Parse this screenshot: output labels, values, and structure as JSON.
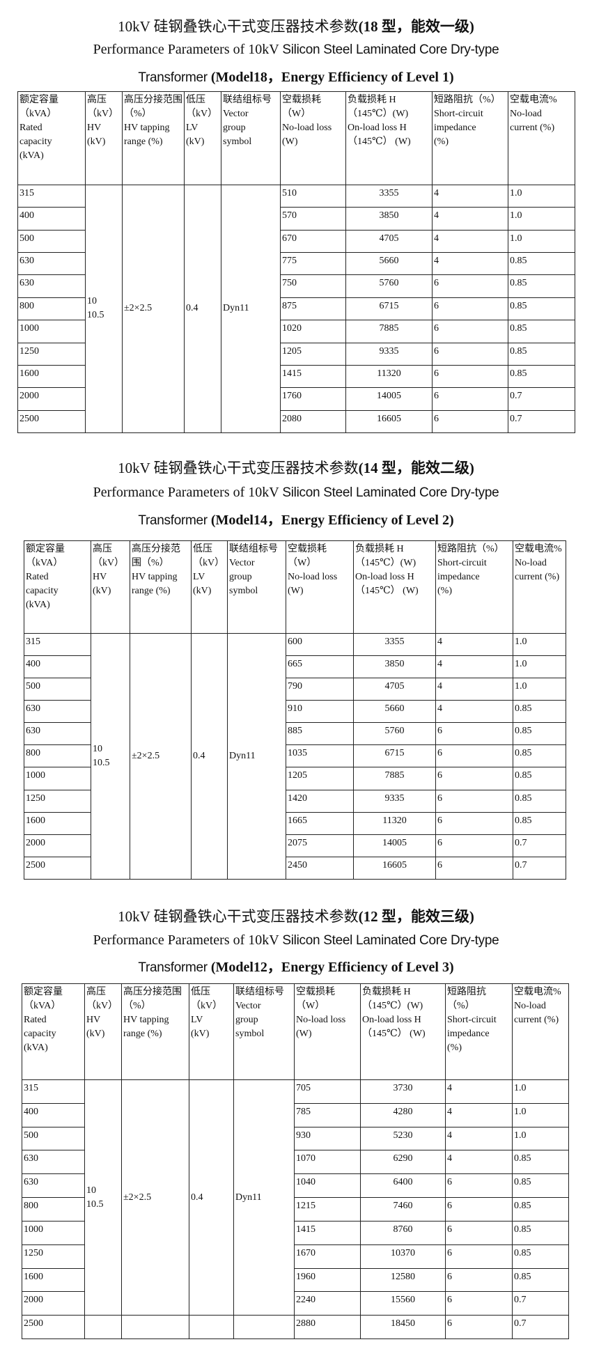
{
  "headers": [
    "额定容量\n（kVA）\n Rated\ncapacity\n(kVA)",
    "高压\n（kV）\nHV\n  (kV)",
    "高压分接范围（%）\nHV tapping\nrange (%)",
    "低压\n（kV）\nLV\n  (kV)",
    "联结组标号\nVector\ngroup\nsymbol",
    "空载损耗\n（W）\nNo-load loss\n(W)",
    "负载损耗 H\n（145℃）(W)\nOn-load loss  H\n（145℃） (W)",
    "短路阻抗（%）\nShort-circuit\nimpedance\n(%)",
    "空载电流%\nNo-load\ncurrent (%)"
  ],
  "common": {
    "hv": "10\n10.5",
    "tapping": "±2×2.5",
    "lv": "0.4",
    "vector": "Dyn11"
  },
  "tables": [
    {
      "title_cn_a": "10kV 硅钢叠铁心干式变压器技术参数",
      "title_cn_b": "(18 型，能效一级)",
      "title_en_1a": "Performance Parameters of 10kV ",
      "title_en_1b": "Silicon Steel Laminated Core Dry-type",
      "title_en_2a": "Transformer ",
      "title_en_2b": "(Model18，Energy Efficiency of Level 1)",
      "rows": [
        [
          "315",
          "510",
          "3355",
          "4",
          "1.0"
        ],
        [
          "400",
          "570",
          "3850",
          "4",
          "1.0"
        ],
        [
          "500",
          "670",
          "4705",
          "4",
          "1.0"
        ],
        [
          "630",
          "775",
          "5660",
          "4",
          "0.85"
        ],
        [
          "630",
          "750",
          "5760",
          "6",
          "0.85"
        ],
        [
          "800",
          "875",
          "6715",
          "6",
          "0.85"
        ],
        [
          "1000",
          "1020",
          "7885",
          "6",
          "0.85"
        ],
        [
          "1250",
          "1205",
          "9335",
          "6",
          "0.85"
        ],
        [
          "1600",
          "1415",
          "11320",
          "6",
          "0.85"
        ],
        [
          "2000",
          "1760",
          "14005",
          "6",
          "0.7"
        ],
        [
          "2500",
          "2080",
          "16605",
          "6",
          "0.7"
        ]
      ]
    },
    {
      "title_cn_a": "10kV 硅钢叠铁心干式变压器技术参数",
      "title_cn_b": "(14 型，能效二级)",
      "title_en_1a": "Performance Parameters of 10kV ",
      "title_en_1b": "Silicon Steel Laminated Core Dry-type",
      "title_en_2a": "Transformer ",
      "title_en_2b": "(Model14，Energy Efficiency of Level 2)",
      "rows": [
        [
          "315",
          "600",
          "3355",
          "4",
          "1.0"
        ],
        [
          "400",
          "665",
          "3850",
          "4",
          "1.0"
        ],
        [
          "500",
          "790",
          "4705",
          "4",
          "1.0"
        ],
        [
          "630",
          "910",
          "5660",
          "4",
          "0.85"
        ],
        [
          "630",
          "885",
          "5760",
          "6",
          "0.85"
        ],
        [
          "800",
          "1035",
          "6715",
          "6",
          "0.85"
        ],
        [
          "1000",
          "1205",
          "7885",
          "6",
          "0.85"
        ],
        [
          "1250",
          "1420",
          "9335",
          "6",
          "0.85"
        ],
        [
          "1600",
          "1665",
          "11320",
          "6",
          "0.85"
        ],
        [
          "2000",
          "2075",
          "14005",
          "6",
          "0.7"
        ],
        [
          "2500",
          "2450",
          "16605",
          "6",
          "0.7"
        ]
      ]
    },
    {
      "title_cn_a": "10kV 硅钢叠铁心干式变压器技术参数",
      "title_cn_b": "(12 型，能效三级)",
      "title_en_1a": "Performance Parameters of 10kV ",
      "title_en_1b": "Silicon Steel Laminated Core Dry-type",
      "title_en_2a": "Transformer ",
      "title_en_2b": "(Model12，Energy Efficiency of Level 3)",
      "rows": [
        [
          "315",
          "705",
          "3730",
          "4",
          "1.0"
        ],
        [
          "400",
          "785",
          "4280",
          "4",
          "1.0"
        ],
        [
          "500",
          "930",
          "5230",
          "4",
          "1.0"
        ],
        [
          "630",
          "1070",
          "6290",
          "4",
          "0.85"
        ],
        [
          "630",
          "1040",
          "6400",
          "6",
          "0.85"
        ],
        [
          "800",
          "1215",
          "7460",
          "6",
          "0.85"
        ],
        [
          "1000",
          "1415",
          "8760",
          "6",
          "0.85"
        ],
        [
          "1250",
          "1670",
          "10370",
          "6",
          "0.85"
        ],
        [
          "1600",
          "1960",
          "12580",
          "6",
          "0.85"
        ],
        [
          "2000",
          "2240",
          "15560",
          "6",
          "0.7"
        ],
        [
          "2500",
          "2880",
          "18450",
          "6",
          "0.7"
        ]
      ]
    }
  ]
}
